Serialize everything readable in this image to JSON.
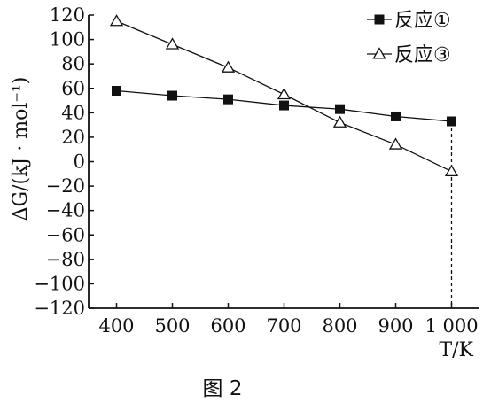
{
  "chart_data": {
    "type": "line",
    "x": [
      400,
      500,
      600,
      700,
      800,
      900,
      1000
    ],
    "x_tick_labels": [
      "400",
      "500",
      "600",
      "700",
      "800",
      "900",
      "1 000"
    ],
    "y_tick_labels": [
      "120",
      "100",
      "80",
      "60",
      "40",
      "20",
      "0",
      "−20",
      "−40",
      "−60",
      "−80",
      "−100",
      "−120"
    ],
    "y_ticks": [
      120,
      100,
      80,
      60,
      40,
      20,
      0,
      -20,
      -40,
      -60,
      -80,
      -100,
      -120
    ],
    "xlim": [
      350,
      1050
    ],
    "ylim": [
      -120,
      120
    ],
    "ylabel": "ΔG/(kJ · mol⁻¹)",
    "xlabel": "T/K",
    "caption": "图 2",
    "legend_position": "top-right",
    "grid": false,
    "series": [
      {
        "name": "反应①",
        "marker": "square",
        "values": [
          58,
          54,
          51,
          46,
          43,
          37,
          33
        ]
      },
      {
        "name": "反应③",
        "marker": "triangle-open",
        "values": [
          115,
          96,
          77,
          55,
          32,
          14,
          -8
        ]
      }
    ],
    "annotation": {
      "type": "vertical-dashed",
      "x": 1000,
      "from_y": 33,
      "to_y": -120
    }
  }
}
